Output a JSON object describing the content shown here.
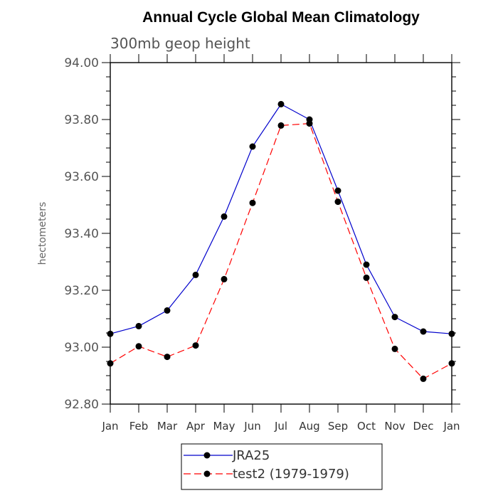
{
  "chart_data": {
    "type": "line",
    "title": "Annual Cycle Global Mean Climatology",
    "subtitle": "300mb geop height",
    "ylabel": "hectometers",
    "xlabel": "",
    "categories": [
      "Jan",
      "Feb",
      "Mar",
      "Apr",
      "May",
      "Jun",
      "Jul",
      "Aug",
      "Sep",
      "Oct",
      "Nov",
      "Dec",
      "Jan"
    ],
    "ylim": [
      92.8,
      94.0
    ],
    "yticks": [
      "92.80",
      "93.00",
      "93.20",
      "93.40",
      "93.60",
      "93.80",
      "94.00"
    ],
    "grid": false,
    "legend_position": "bottom",
    "series": [
      {
        "name": "JRA25",
        "color": "#0000cc",
        "dash": "solid",
        "values": [
          93.047,
          93.074,
          93.129,
          93.254,
          93.459,
          93.705,
          93.854,
          93.8,
          93.55,
          93.29,
          93.106,
          93.055,
          93.047
        ]
      },
      {
        "name": "test2 (1979-1979)",
        "color": "#ff0000",
        "dash": "dashed",
        "values": [
          92.943,
          93.003,
          92.966,
          93.006,
          93.239,
          93.507,
          93.779,
          93.786,
          93.511,
          93.244,
          92.994,
          92.889,
          92.943
        ]
      }
    ]
  }
}
